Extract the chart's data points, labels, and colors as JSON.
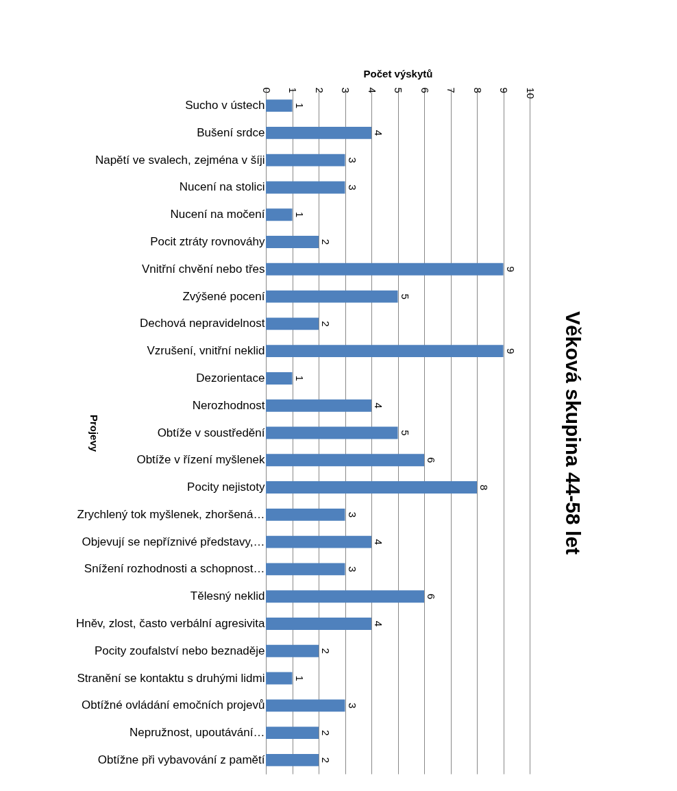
{
  "chart_data": {
    "type": "bar",
    "orientation": "horizontal",
    "title": "Věková skupina 44-58 let",
    "xlabel": "Počet výskytů",
    "ylabel": "Projevy",
    "categories": [
      "Sucho v ústech",
      "Bušení srdce",
      "Napětí ve svalech, zejména v šíji",
      "Nucení na stolici",
      "Nucení na močení",
      "Pocit ztráty rovnováhy",
      "Vnitřní chvění nebo třes",
      "Zvýšené pocení",
      "Dechová nepravidelnost ",
      "Vzrušení, vnitřní neklid",
      "Dezorientace",
      "Nerozhodnost",
      "Obtíže v soustředění",
      "Obtíže v řízení myšlenek",
      "Pocity nejistoty",
      "Zrychlený tok myšlenek, zhoršená…",
      "Objevují se nepříznivé představy,…",
      "Snížení rozhodnosti a schopnost…",
      "Tělesný neklid",
      "Hněv, zlost, často verbální agresivita",
      "Pocity zoufalství nebo beznaděje",
      "Stranění se kontaktu s druhými lidmi",
      "Obtížné ovládání emočních projevů",
      "Nepružnost, upoutávání…",
      "Obtížne při vybavování z pamětí "
    ],
    "values": [
      1,
      4,
      3,
      3,
      1,
      2,
      9,
      5,
      2,
      9,
      1,
      4,
      5,
      6,
      8,
      3,
      4,
      3,
      6,
      4,
      2,
      1,
      3,
      2,
      2
    ],
    "color": "#4f81bd",
    "xlim": [
      0,
      10
    ],
    "xticks": [
      0,
      1,
      2,
      3,
      4,
      5,
      6,
      7,
      8,
      9,
      10
    ],
    "grid": "x",
    "data_labels": true
  }
}
